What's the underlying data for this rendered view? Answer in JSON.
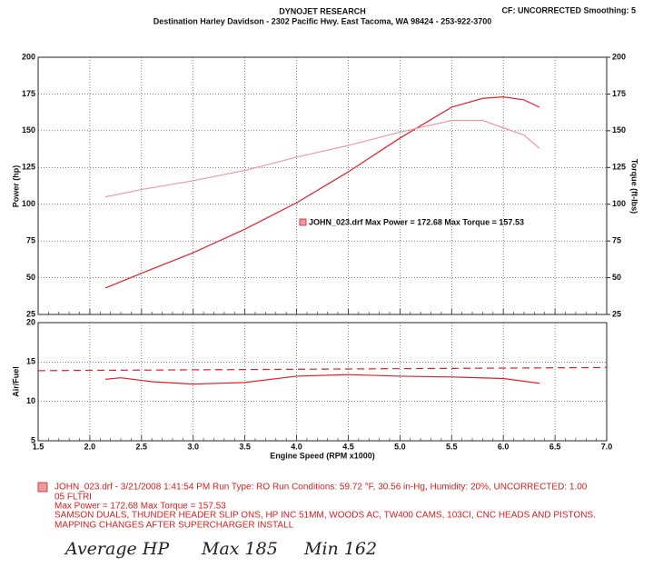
{
  "header": {
    "title": "DYNOJET RESEARCH",
    "subtitle": "Destination Harley Davidson - 2302 Pacific Hwy. East Tacoma, WA 98424 - 253-922-3700",
    "settings": "CF: UNCORRECTED  Smoothing: 5"
  },
  "chart_data": [
    {
      "type": "line",
      "ylabel": "Power (hp)",
      "y2label": "Torque (ft-lbs)",
      "annotation": "JOHN_023.drf Max Power = 172.68    Max Torque = 157.53",
      "xlim": [
        1.5,
        7.0
      ],
      "ylim": [
        25,
        200
      ],
      "yticks": [
        25,
        50,
        75,
        100,
        125,
        150,
        175,
        200
      ],
      "y2lim": [
        25,
        200
      ],
      "y2ticks": [
        25,
        50,
        75,
        100,
        125,
        150,
        175,
        200
      ],
      "grid": true,
      "x": [
        2.15,
        2.5,
        3.0,
        3.5,
        4.0,
        4.5,
        5.0,
        5.5,
        5.8,
        6.0,
        6.2,
        6.35
      ],
      "series": [
        {
          "color": "#e0202a",
          "values": [
            43,
            53,
            67,
            83,
            101,
            122,
            145,
            166,
            172,
            173,
            171,
            166
          ]
        },
        {
          "color": "#eb9ca2",
          "axis": "y2",
          "values": [
            105,
            110,
            116,
            123,
            132,
            140,
            149,
            157,
            157,
            152,
            147,
            138
          ]
        }
      ]
    },
    {
      "type": "line",
      "ylabel": "Air/Fuel",
      "xlabel": "Engine Speed (RPM x1000)",
      "xlim": [
        1.5,
        7.0
      ],
      "xticks": [
        {
          "value": 1.5,
          "label": "1.5"
        },
        {
          "value": 2.0,
          "label": "2.0"
        },
        {
          "value": 2.5,
          "label": "2.5"
        },
        {
          "value": 3.0,
          "label": "3.0"
        },
        {
          "value": 3.5,
          "label": "3.5"
        },
        {
          "value": 4.0,
          "label": "4.0"
        },
        {
          "value": 4.5,
          "label": "4.5"
        },
        {
          "value": 5.0,
          "label": "5.0"
        },
        {
          "value": 5.5,
          "label": "5.5"
        },
        {
          "value": 6.0,
          "label": "6.0"
        },
        {
          "value": 6.5,
          "label": "6.5"
        },
        {
          "value": 7.0,
          "label": "7.0"
        }
      ],
      "ylim": [
        5,
        20
      ],
      "yticks": [
        5,
        10,
        15,
        20
      ],
      "grid": true,
      "series": [
        {
          "color": "#e0202a",
          "x": [
            2.15,
            2.3,
            2.6,
            3.0,
            3.5,
            4.0,
            4.5,
            5.0,
            5.5,
            6.0,
            6.35
          ],
          "values": [
            12.8,
            13.0,
            12.5,
            12.2,
            12.4,
            13.2,
            13.4,
            13.2,
            13.1,
            12.9,
            12.3
          ]
        },
        {
          "color": "#e0202a",
          "dashed": true,
          "x": [
            1.5,
            7.0
          ],
          "values": [
            13.9,
            14.3
          ]
        }
      ]
    }
  ],
  "footer": {
    "lines": [
      "JOHN_023.drf - 3/21/2008 1:41:54 PM  Run Type: RO  Run Conditions: 59.72 °F, 30.56 in-Hg,  Humidity:  20%, UNCORRECTED: 1.00",
      "05 FLTRI",
      "Max Power = 172.68  Max Torque = 157.53",
      "SAMSON DUALS, THUNDER HEADER SLIP ONS, HP INC 51MM, WOODS AC, TW400 CAMS, 103CI, CNC HEADS AND PISTONS.",
      "MAPPING CHANGES AFTER SUPERCHARGER INSTALL"
    ],
    "handwriting": [
      "Average HP",
      "Max 185",
      "Min 162"
    ]
  }
}
